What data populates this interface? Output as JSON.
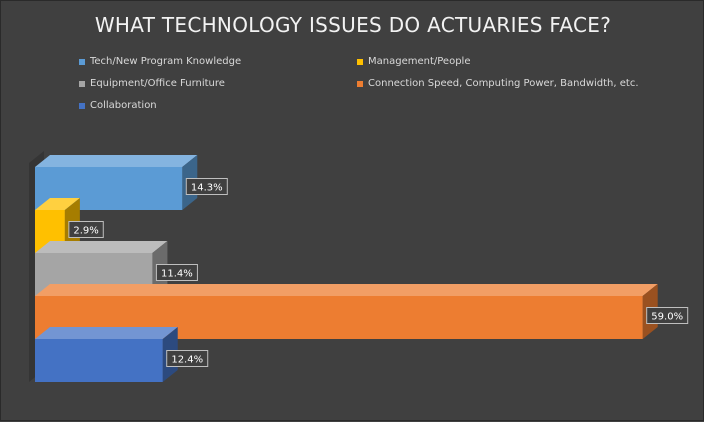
{
  "chart_data": {
    "type": "bar",
    "orientation": "horizontal",
    "title": "WHAT TECHNOLOGY ISSUES DO ACTUARIES FACE?",
    "xlabel": "",
    "ylabel": "",
    "xlim": [
      0,
      65
    ],
    "grid": false,
    "legend_position": "top",
    "style": "3d",
    "series": [
      {
        "name": "Tech/New Program Knowledge",
        "value": 14.3,
        "label": "14.3%",
        "color": "#5b9bd5"
      },
      {
        "name": "Management/People",
        "value": 2.9,
        "label": "2.9%",
        "color": "#ffc000"
      },
      {
        "name": "Equipment/Office Furniture",
        "value": 11.4,
        "label": "11.4%",
        "color": "#a5a5a5"
      },
      {
        "name": "Connection Speed, Computing Power, Bandwidth, etc.",
        "value": 59.0,
        "label": "59.0%",
        "color": "#ed7d31"
      },
      {
        "name": "Collaboration",
        "value": 12.4,
        "label": "12.4%",
        "color": "#4472c4"
      }
    ]
  },
  "colors": {
    "background": "#404040",
    "title": "#f2f2f2",
    "legend_text": "#d9d9d9",
    "data_label_bg": "#404040",
    "data_label_text": "#ffffff",
    "wall": "#353535"
  }
}
